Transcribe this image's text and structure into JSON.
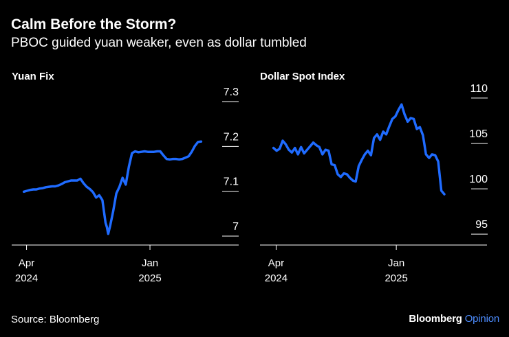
{
  "title": "Calm Before the Storm?",
  "subtitle": "PBOC guided yuan weaker, even as dollar tumbled",
  "source": "Source: Bloomberg",
  "brand": {
    "name": "Bloomberg",
    "suffix": "Opinion"
  },
  "colors": {
    "background": "#000000",
    "line": "#1f6bff",
    "text": "#ffffff",
    "brand_accent": "#4d8dff"
  },
  "chart_data": [
    {
      "type": "line",
      "title": "Yuan Fix",
      "x_ticks": [
        "Apr 2024",
        "Jan 2025"
      ],
      "x_range": [
        "2024-03-25",
        "2025-05-02"
      ],
      "y_ticks": [
        7.0,
        7.1,
        7.2,
        7.3
      ],
      "ylim": [
        6.98,
        7.32
      ],
      "grid": false,
      "series": [
        {
          "x": [
            "2024-03-26",
            "2024-04-02",
            "2024-04-09",
            "2024-04-16",
            "2024-04-23",
            "2024-04-30",
            "2024-05-07",
            "2024-05-14",
            "2024-05-21",
            "2024-05-28",
            "2024-06-04",
            "2024-06-11",
            "2024-06-18",
            "2024-06-25",
            "2024-07-02",
            "2024-07-09",
            "2024-07-16",
            "2024-07-23",
            "2024-07-30",
            "2024-08-06",
            "2024-08-13",
            "2024-08-20",
            "2024-08-27",
            "2024-09-03",
            "2024-09-10",
            "2024-09-17",
            "2024-09-24",
            "2024-09-27",
            "2024-09-30",
            "2024-10-04",
            "2024-10-11",
            "2024-10-18",
            "2024-10-25",
            "2024-11-01",
            "2024-11-08",
            "2024-11-15",
            "2024-11-22",
            "2024-11-29",
            "2024-12-06",
            "2024-12-13",
            "2024-12-20",
            "2024-12-27",
            "2025-01-03",
            "2025-01-10",
            "2025-01-17",
            "2025-01-24",
            "2025-01-31",
            "2025-02-07",
            "2025-02-14",
            "2025-02-21",
            "2025-02-28",
            "2025-03-07",
            "2025-03-14",
            "2025-03-21",
            "2025-03-28",
            "2025-04-04",
            "2025-04-11",
            "2025-04-18",
            "2025-04-25"
          ],
          "values": [
            7.099,
            7.101,
            7.103,
            7.104,
            7.104,
            7.106,
            7.107,
            7.109,
            7.11,
            7.111,
            7.111,
            7.113,
            7.116,
            7.12,
            7.122,
            7.124,
            7.124,
            7.124,
            7.128,
            7.118,
            7.11,
            7.105,
            7.098,
            7.086,
            7.091,
            7.08,
            7.03,
            7.02,
            7.005,
            7.022,
            7.055,
            7.095,
            7.11,
            7.13,
            7.115,
            7.155,
            7.185,
            7.189,
            7.187,
            7.188,
            7.189,
            7.188,
            7.188,
            7.188,
            7.189,
            7.189,
            7.18,
            7.172,
            7.171,
            7.172,
            7.172,
            7.171,
            7.172,
            7.175,
            7.178,
            7.188,
            7.201,
            7.21,
            7.211
          ]
        }
      ]
    },
    {
      "type": "line",
      "title": "Dollar Spot Index",
      "x_ticks": [
        "Apr 2024",
        "Jan 2025"
      ],
      "x_range": [
        "2024-03-25",
        "2025-05-02"
      ],
      "y_ticks": [
        95,
        100,
        105,
        110
      ],
      "ylim": [
        93.8,
        110.6
      ],
      "grid": false,
      "series": [
        {
          "x": [
            "2024-03-26",
            "2024-04-02",
            "2024-04-09",
            "2024-04-16",
            "2024-04-23",
            "2024-04-30",
            "2024-05-07",
            "2024-05-14",
            "2024-05-21",
            "2024-05-28",
            "2024-06-04",
            "2024-06-11",
            "2024-06-18",
            "2024-06-25",
            "2024-07-02",
            "2024-07-09",
            "2024-07-16",
            "2024-07-23",
            "2024-07-30",
            "2024-08-06",
            "2024-08-13",
            "2024-08-20",
            "2024-08-27",
            "2024-09-03",
            "2024-09-10",
            "2024-09-17",
            "2024-09-24",
            "2024-09-30",
            "2024-10-07",
            "2024-10-14",
            "2024-10-21",
            "2024-10-28",
            "2024-11-04",
            "2024-11-11",
            "2024-11-18",
            "2024-11-25",
            "2024-12-02",
            "2024-12-09",
            "2024-12-16",
            "2024-12-23",
            "2024-12-30",
            "2025-01-06",
            "2025-01-13",
            "2025-01-20",
            "2025-01-27",
            "2025-02-03",
            "2025-02-10",
            "2025-02-17",
            "2025-02-24",
            "2025-03-03",
            "2025-03-10",
            "2025-03-17",
            "2025-03-24",
            "2025-03-31",
            "2025-04-07",
            "2025-04-14",
            "2025-04-21"
          ],
          "values": [
            104.5,
            104.2,
            104.4,
            105.3,
            104.9,
            104.3,
            104.0,
            104.5,
            103.8,
            104.6,
            103.9,
            104.3,
            104.7,
            105.1,
            104.8,
            104.6,
            103.8,
            104.3,
            104.2,
            102.7,
            102.6,
            101.6,
            101.3,
            101.7,
            101.6,
            101.2,
            100.9,
            100.8,
            102.5,
            103.2,
            103.8,
            104.2,
            103.7,
            105.6,
            106.0,
            105.4,
            106.3,
            106.0,
            106.9,
            107.7,
            108.0,
            108.7,
            109.3,
            108.2,
            107.4,
            107.8,
            107.7,
            106.6,
            106.8,
            105.9,
            103.8,
            103.4,
            103.8,
            103.7,
            103.0,
            99.8,
            99.4
          ]
        }
      ]
    }
  ]
}
